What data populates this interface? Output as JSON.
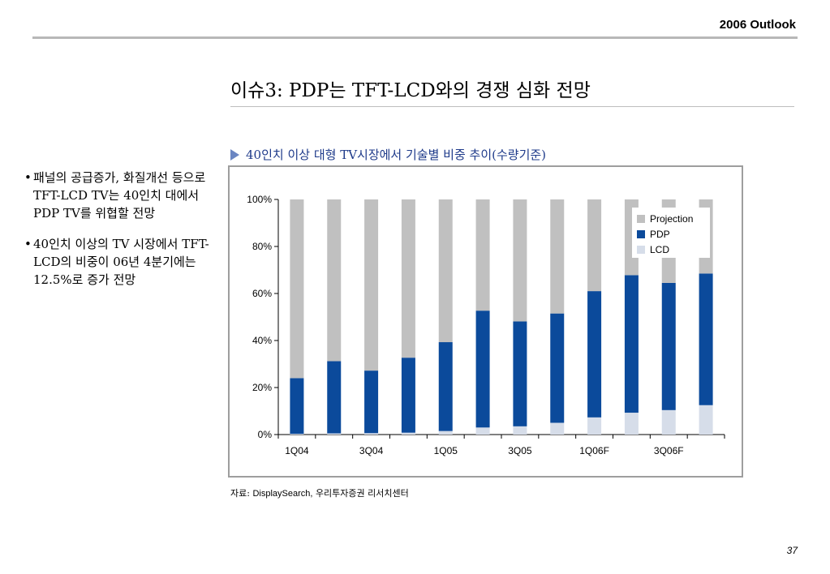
{
  "header": {
    "title": "2006 Outlook"
  },
  "slide": {
    "title": "이슈3: PDP는 TFT-LCD와의 경쟁 심화 전망",
    "caption": "40인치 이상 대형 TV시장에서 기술별 비중 추이(수량기준)"
  },
  "bullets": [
    {
      "text": "패널의 공급증가, 화질개선 등으로 TFT-LCD TV는 40인치 대에서 PDP TV를 위협할 전망"
    },
    {
      "text": "40인치 이상의 TV 시장에서 TFT-LCD의 비중이 06년 4분기에는 12.5%로 증가 전망"
    }
  ],
  "source": {
    "prefix": "자료:",
    "name": "DisplaySearch,",
    "suffix": "우리투자증권 리서치센터"
  },
  "page_number": "37",
  "chart_data": {
    "type": "bar",
    "stacked": true,
    "categories": [
      "1Q04",
      "2Q04",
      "3Q04",
      "4Q04",
      "1Q05",
      "2Q05",
      "3Q05",
      "4Q05",
      "1Q06F",
      "2Q06F",
      "3Q06F",
      "4Q06F"
    ],
    "x_tick_labels": [
      "1Q04",
      "",
      "3Q04",
      "",
      "1Q05",
      "",
      "3Q05",
      "",
      "1Q06F",
      "",
      "3Q06F",
      ""
    ],
    "series": [
      {
        "name": "LCD",
        "color": "#d6dde9",
        "values": [
          0.3,
          0.5,
          0.6,
          0.8,
          1.5,
          3.0,
          3.5,
          5.0,
          7.3,
          9.3,
          10.4,
          12.5
        ]
      },
      {
        "name": "PDP",
        "color": "#0b4a9b",
        "values": [
          23.7,
          30.7,
          26.6,
          31.9,
          37.8,
          49.7,
          44.6,
          46.5,
          53.7,
          58.5,
          54.1,
          56.0
        ]
      },
      {
        "name": "Projection",
        "color": "#c0c0c0",
        "values": [
          76.0,
          68.8,
          72.8,
          67.3,
          60.7,
          47.3,
          51.9,
          48.5,
          39.0,
          32.2,
          35.5,
          31.5
        ]
      }
    ],
    "legend_order": [
      "Projection",
      "PDP",
      "LCD"
    ],
    "yticks": [
      "0%",
      "20%",
      "40%",
      "60%",
      "80%",
      "100%"
    ],
    "ylim": [
      0,
      100
    ],
    "legend_position": "top-right",
    "grid": false
  }
}
